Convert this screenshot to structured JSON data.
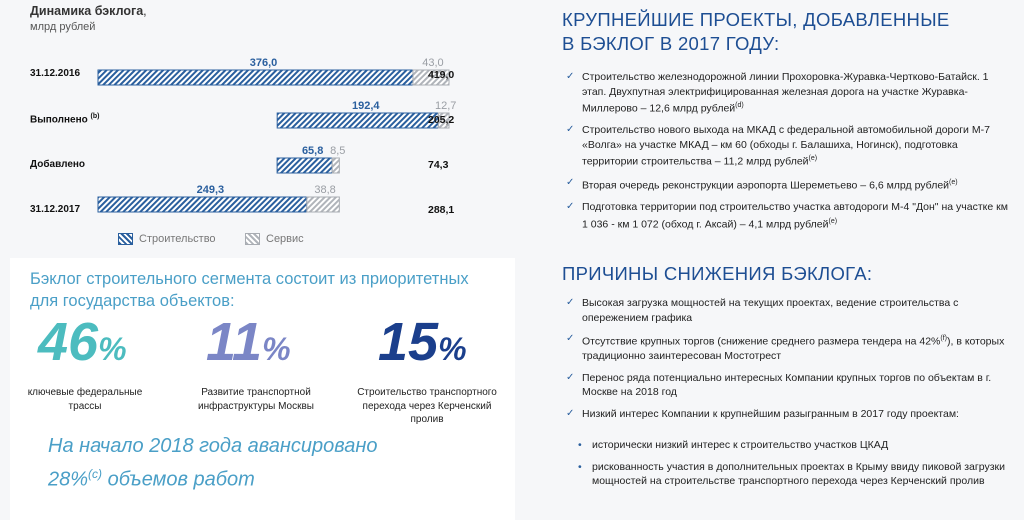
{
  "chart_data": {
    "type": "bar",
    "title": "Динамика бэклога",
    "unit": "млрд рублей",
    "categories": [
      "31.12.2016",
      "Выполнено",
      "Добавлено",
      "31.12.2017"
    ],
    "category_notes": [
      "",
      "(b)",
      "",
      ""
    ],
    "series": [
      {
        "name": "Строительство",
        "values": [
          376.0,
          192.4,
          65.8,
          249.3
        ],
        "labels": [
          "376,0",
          "192,4",
          "65,8",
          "249,3"
        ],
        "color": "#2a5f9e"
      },
      {
        "name": "Сервис",
        "values": [
          43.0,
          12.7,
          8.5,
          38.8
        ],
        "labels": [
          "43,0",
          "12,7",
          "8,5",
          "38,8"
        ],
        "color": "#a8acb2"
      }
    ],
    "totals": [
      "419,0",
      "205,2",
      "74,3",
      "288,1"
    ],
    "layout": "waterfall",
    "legend_position": "bottom"
  },
  "chart": {
    "title": "Динамика бэклога",
    "title_suffix": ",",
    "unit": "млрд рублей",
    "legend": {
      "construction": "Строительство",
      "service": "Сервис"
    },
    "rows": [
      {
        "label": "31.12.2016",
        "note": "",
        "total": "419,0"
      },
      {
        "label": "Выполнено",
        "note": "(b)",
        "total": "205,2"
      },
      {
        "label": "Добавлено",
        "note": "",
        "total": "74,3"
      },
      {
        "label": "31.12.2017",
        "note": "",
        "total": "288,1"
      }
    ]
  },
  "priority": {
    "intro": "Бэклог строительного сегмента состоит из приоритетных для государства объектов:",
    "stats": [
      {
        "value": "46",
        "pct": "%",
        "caption": "ключевые федеральные трассы",
        "color": "#4cbcbf"
      },
      {
        "value": "11",
        "pct": "%",
        "caption": "Развитие транспортной инфраструктуры Москвы",
        "color": "#7b86c6"
      },
      {
        "value": "15",
        "pct": "%",
        "caption": "Строительство транспортного перехода через Керченский пролив",
        "color": "#1b3f8c"
      }
    ],
    "note_line1": "На начало 2018 года авансировано",
    "note_pct": "28%",
    "note_sup": "(c)",
    "note_tail": " объемов работ"
  },
  "projects": {
    "title_line1": "КРУПНЕЙШИЕ ПРОЕКТЫ, ДОБАВЛЕННЫЕ",
    "title_line2": "В БЭКЛОГ В 2017 ГОДУ:",
    "items": [
      {
        "text": "Строительство железнодорожной линии Прохоровка-Журавка-Чертково-Батайск. 1 этап. Двухпутная электрифицированная железная дорога на участке Журавка-Миллерово – 12,6 млрд рублей",
        "sup": "(d)"
      },
      {
        "text": "Строительство нового выхода на МКАД с федеральной автомобильной дороги М-7 «Волга» на участке МКАД – км 60 (обходы г. Балашиха, Ногинск), подготовка территории строительства – 11,2 млрд рублей",
        "sup": "(e)"
      },
      {
        "text": "Вторая очередь реконструкции аэропорта Шереметьево – 6,6 млрд рублей",
        "sup": "(e)"
      },
      {
        "text": "Подготовка территории под строительство участка автодороги М-4 \"Дон\" на участке км 1 036 - км 1 072 (обход г. Аксай) – 4,1 млрд рублей",
        "sup": "(e)"
      }
    ]
  },
  "reasons": {
    "title": "ПРИЧИНЫ СНИЖЕНИЯ БЭКЛОГА:",
    "items": [
      {
        "text": "Высокая загрузка мощностей на текущих проектах, ведение строительства с опережением графика",
        "sup": "",
        "tail": ""
      },
      {
        "text": "Отсутствие крупных торгов (снижение среднего размера тендера на 42%",
        "sup": "(f)",
        "tail": "), в которых традиционно заинтересован Мостотрест"
      },
      {
        "text": "Перенос ряда потенциально интересных Компании крупных торгов по объектам в г. Москве на 2018 год",
        "sup": "",
        "tail": ""
      },
      {
        "text": "Низкий интерес Компании к крупнейшим разыгранным в 2017 году проектам:",
        "sup": "",
        "tail": ""
      }
    ],
    "subitems": [
      "исторически низкий интерес к строительство участков ЦКАД",
      "рискованность участия в дополнительных проектах в Крыму ввиду пиковой загрузки мощностей на строительстве транспортного перехода через Керченский пролив"
    ]
  },
  "bullet": "✓",
  "subbullet": "•"
}
